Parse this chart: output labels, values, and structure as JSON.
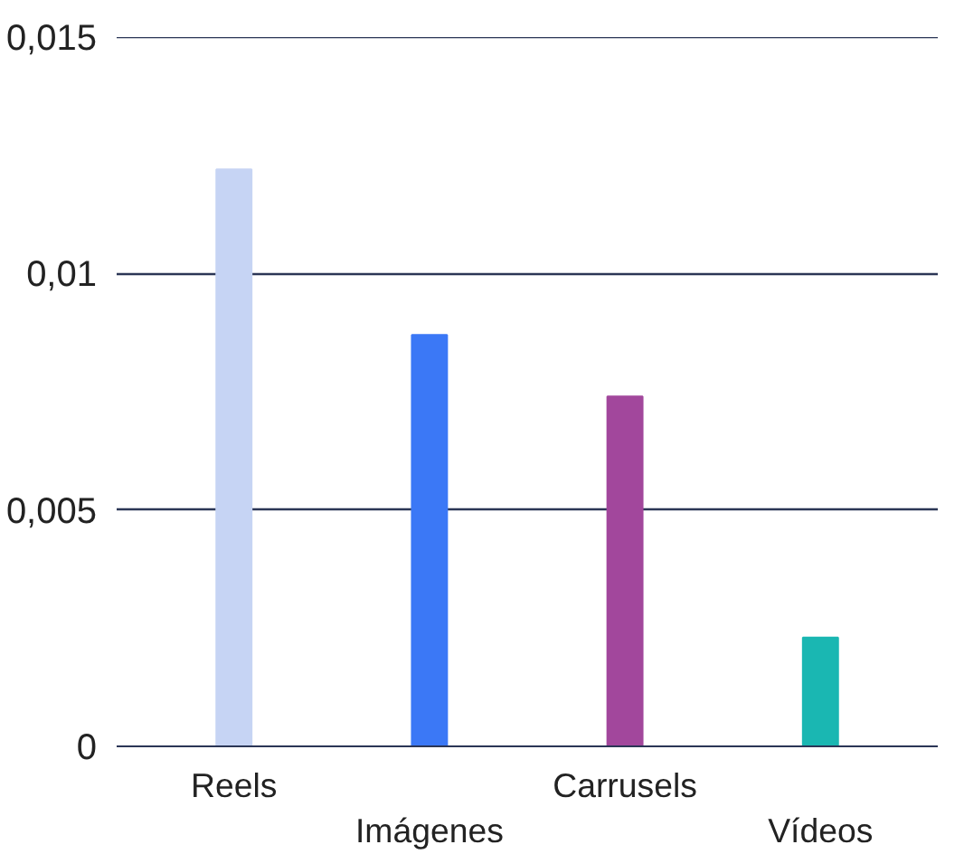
{
  "chart_data": {
    "type": "bar",
    "categories": [
      "Reels",
      "Imágenes",
      "Carrusels",
      "Vídeos"
    ],
    "values": [
      0.0122,
      0.0087,
      0.0074,
      0.0023
    ],
    "colors": [
      "#c6d4f4",
      "#3b78f6",
      "#a2479c",
      "#1ab7b2"
    ],
    "ylim": [
      0,
      0.015
    ],
    "yticks": [
      0,
      {
        "value": 0.005,
        "label": "0,005"
      },
      {
        "value": 0.01,
        "label": "0,01"
      },
      {
        "value": 0.015,
        "label": "0,015"
      }
    ],
    "grid": "y"
  }
}
